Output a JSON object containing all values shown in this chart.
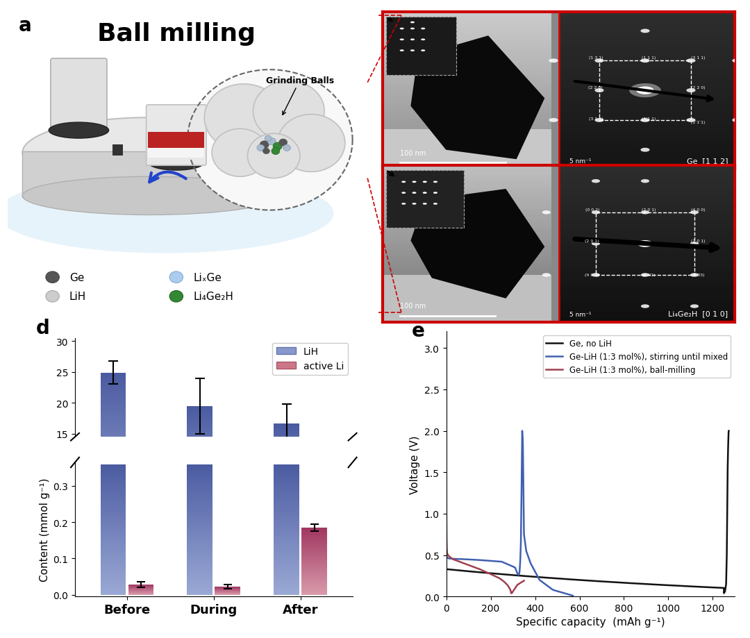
{
  "panel_d": {
    "categories": [
      "Before",
      "During",
      "After"
    ],
    "lih_values": [
      24.9,
      19.5,
      16.6
    ],
    "lih_errors": [
      1.8,
      4.5,
      3.2
    ],
    "active_li_values": [
      0.028,
      0.022,
      0.185
    ],
    "active_li_errors": [
      0.008,
      0.006,
      0.01
    ],
    "lih_color_light": "#9aa8d4",
    "lih_color_dark": "#4a5aa0",
    "active_color_light": "#d89aaa",
    "active_color_dark": "#a03560",
    "ylabel": "Content (mmol g⁻¹)",
    "yticks_upper": [
      15,
      20,
      25,
      30
    ],
    "yticks_lower": [
      0.0,
      0.1,
      0.2,
      0.3
    ],
    "bar_width": 0.32,
    "label": "d"
  },
  "panel_e": {
    "label": "e",
    "xlabel": "Specific capacity  (mAh g⁻¹)",
    "ylabel": "Voltage (V)",
    "xlim": [
      0,
      1300
    ],
    "ylim": [
      0.0,
      3.2
    ],
    "yticks": [
      0.0,
      0.5,
      1.0,
      1.5,
      2.0,
      2.5,
      3.0
    ],
    "xticks": [
      0,
      200,
      400,
      600,
      800,
      1000,
      1200
    ],
    "legend": [
      {
        "label": "Ge, no LiH",
        "color": "#111111"
      },
      {
        "label": "Ge-LiH (1:3 mol%), stirring until mixed",
        "color": "#4060b0"
      },
      {
        "label": "Ge-LiH (1:3 mol%), ball-milling",
        "color": "#a04050"
      }
    ]
  },
  "panel_a": {
    "label": "a",
    "title": "Ball milling"
  },
  "background_color": "#ffffff"
}
